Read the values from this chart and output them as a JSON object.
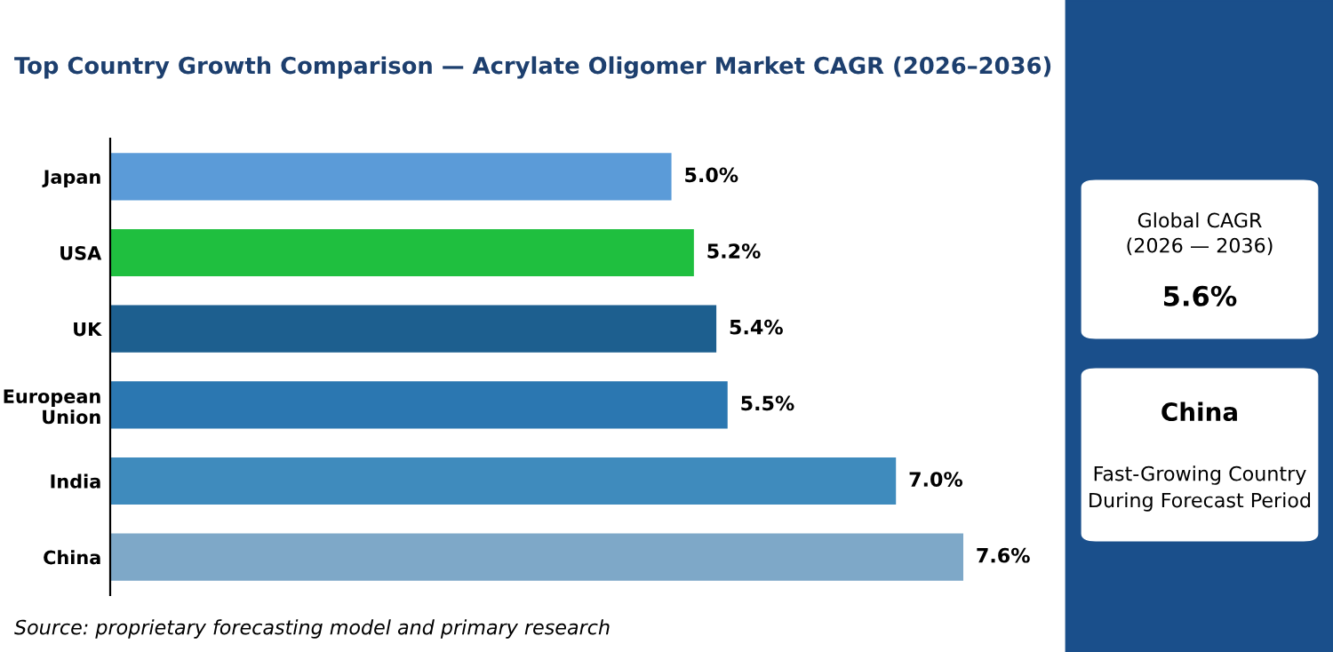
{
  "chart_data": {
    "type": "bar",
    "orientation": "horizontal",
    "title": "Top Country Growth Comparison — Acrylate Oligomer Market CAGR (2026–2036)",
    "categories": [
      "Japan",
      "USA",
      "UK",
      "European Union",
      "India",
      "China"
    ],
    "values": [
      5.0,
      5.2,
      5.4,
      5.5,
      7.0,
      7.6
    ],
    "colors": [
      "#5b9bd8",
      "#1fbf3f",
      "#1d5f8f",
      "#2b77b1",
      "#3f8bbd",
      "#7ea8c8"
    ],
    "value_labels": [
      "5.0%",
      "5.2%",
      "5.4%",
      "5.5%",
      "7.0%",
      "7.6%"
    ],
    "grid": false,
    "legend": false,
    "annotations": [
      "Source: proprietary forecasting model and primary research",
      "Global CAGR\n(2026 — 2036)",
      "5.6%",
      "China",
      "Fast-Growing Country\nDuring Forecast Period"
    ]
  }
}
